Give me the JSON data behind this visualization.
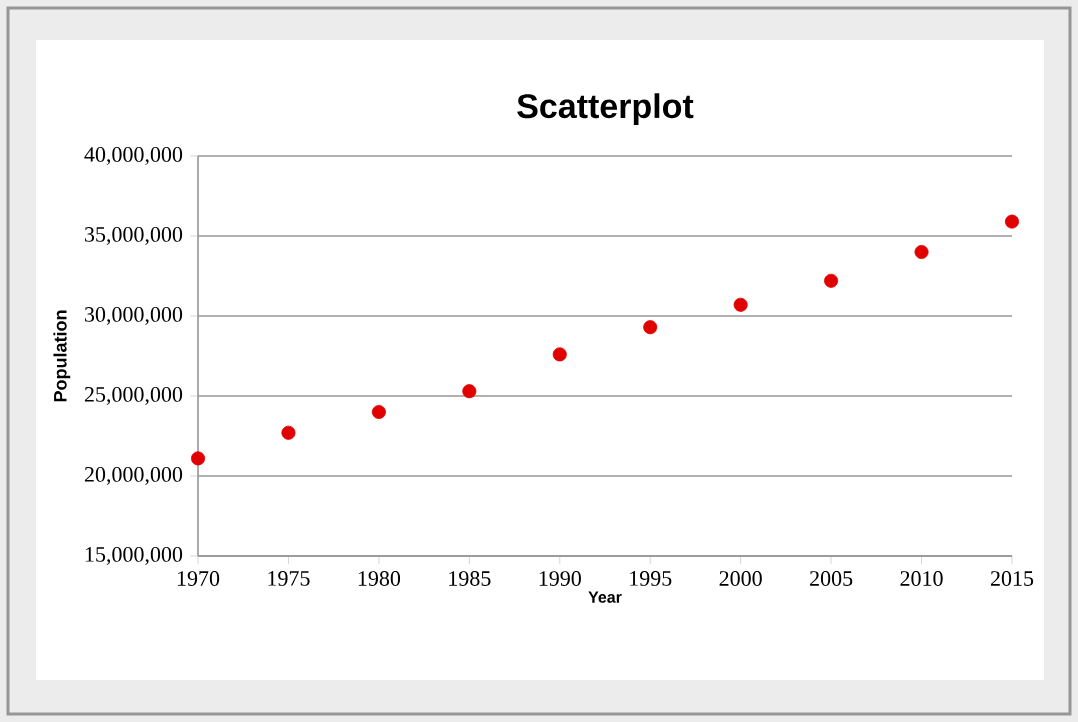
{
  "chart_data": {
    "type": "scatter",
    "title": "Scatterplot",
    "xlabel": "Year",
    "ylabel": "Population",
    "x": [
      1970,
      1975,
      1980,
      1985,
      1990,
      1995,
      2000,
      2005,
      2010,
      2015
    ],
    "values": [
      21100000,
      22700000,
      24000000,
      25300000,
      27600000,
      29300000,
      30700000,
      32200000,
      34000000,
      35900000
    ],
    "color": "#e00000",
    "xlim": [
      1970,
      2015
    ],
    "xticks": [
      1970,
      1975,
      1980,
      1985,
      1990,
      1995,
      2000,
      2005,
      2010,
      2015
    ],
    "ylim": [
      15000000,
      40000000
    ],
    "yticks": [
      {
        "value": 15000000,
        "label": "15,000,000"
      },
      {
        "value": 20000000,
        "label": "20,000,000"
      },
      {
        "value": 25000000,
        "label": "25,000,000"
      },
      {
        "value": 30000000,
        "label": "30,000,000"
      },
      {
        "value": 35000000,
        "label": "35,000,000"
      },
      {
        "value": 40000000,
        "label": "40,000,000"
      }
    ],
    "grid": "y",
    "marker": "circle"
  }
}
